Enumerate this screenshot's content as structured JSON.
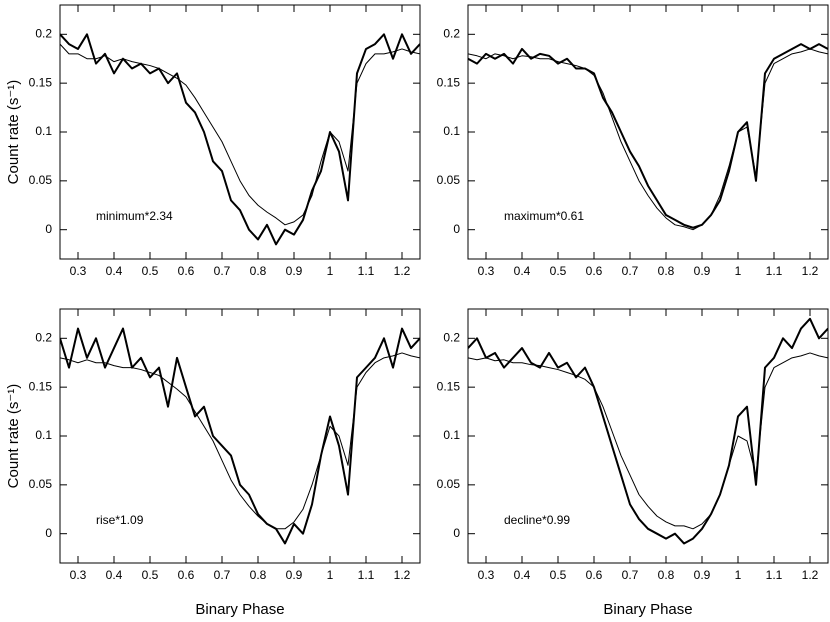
{
  "chart_data": [
    {
      "type": "line",
      "annotation": "minimum*2.34",
      "ylabel": "Count rate (s⁻¹)",
      "xlim": [
        0.25,
        1.25
      ],
      "ylim": [
        -0.03,
        0.23
      ],
      "xticks": [
        0.3,
        0.4,
        0.5,
        0.6,
        0.7,
        0.8,
        0.9,
        1,
        1.1,
        1.2
      ],
      "yticks": [
        0,
        0.05,
        0.1,
        0.15,
        0.2
      ],
      "x": [
        0.25,
        0.275,
        0.3,
        0.325,
        0.35,
        0.375,
        0.4,
        0.425,
        0.45,
        0.475,
        0.5,
        0.525,
        0.55,
        0.575,
        0.6,
        0.625,
        0.65,
        0.675,
        0.7,
        0.725,
        0.75,
        0.775,
        0.8,
        0.825,
        0.85,
        0.875,
        0.9,
        0.925,
        0.95,
        0.975,
        1,
        1.025,
        1.05,
        1.075,
        1.1,
        1.125,
        1.15,
        1.175,
        1.2,
        1.225,
        1.25
      ],
      "series": [
        {
          "color": "#000000",
          "width": 2,
          "values": [
            0.2,
            0.19,
            0.185,
            0.2,
            0.17,
            0.18,
            0.16,
            0.175,
            0.165,
            0.17,
            0.16,
            0.165,
            0.15,
            0.16,
            0.13,
            0.12,
            0.1,
            0.07,
            0.06,
            0.03,
            0.02,
            0.0,
            -0.01,
            0.005,
            -0.015,
            0.0,
            -0.005,
            0.01,
            0.04,
            0.06,
            0.1,
            0.08,
            0.03,
            0.16,
            0.185,
            0.19,
            0.2,
            0.175,
            0.2,
            0.18,
            0.19
          ]
        },
        {
          "color": "#000000",
          "width": 1,
          "values": [
            0.19,
            0.18,
            0.18,
            0.175,
            0.175,
            0.178,
            0.172,
            0.175,
            0.172,
            0.17,
            0.168,
            0.165,
            0.16,
            0.155,
            0.148,
            0.135,
            0.12,
            0.105,
            0.09,
            0.07,
            0.05,
            0.035,
            0.025,
            0.018,
            0.012,
            0.005,
            0.008,
            0.015,
            0.035,
            0.07,
            0.1,
            0.09,
            0.06,
            0.15,
            0.17,
            0.18,
            0.18,
            0.182,
            0.185,
            0.182,
            0.18
          ]
        }
      ]
    },
    {
      "type": "line",
      "annotation": "maximum*0.61",
      "xlim": [
        0.25,
        1.25
      ],
      "ylim": [
        -0.03,
        0.23
      ],
      "xticks": [
        0.3,
        0.4,
        0.5,
        0.6,
        0.7,
        0.8,
        0.9,
        1,
        1.1,
        1.2
      ],
      "yticks": [
        0,
        0.05,
        0.1,
        0.15,
        0.2
      ],
      "x": [
        0.25,
        0.275,
        0.3,
        0.325,
        0.35,
        0.375,
        0.4,
        0.425,
        0.45,
        0.475,
        0.5,
        0.525,
        0.55,
        0.575,
        0.6,
        0.625,
        0.65,
        0.675,
        0.7,
        0.725,
        0.75,
        0.775,
        0.8,
        0.825,
        0.85,
        0.875,
        0.9,
        0.925,
        0.95,
        0.975,
        1,
        1.025,
        1.05,
        1.075,
        1.1,
        1.125,
        1.15,
        1.175,
        1.2,
        1.225,
        1.25
      ],
      "series": [
        {
          "color": "#000000",
          "width": 2,
          "values": [
            0.175,
            0.17,
            0.18,
            0.175,
            0.18,
            0.17,
            0.185,
            0.175,
            0.18,
            0.178,
            0.17,
            0.175,
            0.165,
            0.165,
            0.16,
            0.135,
            0.12,
            0.1,
            0.08,
            0.065,
            0.045,
            0.03,
            0.015,
            0.01,
            0.005,
            0.002,
            0.005,
            0.015,
            0.03,
            0.06,
            0.1,
            0.11,
            0.05,
            0.16,
            0.175,
            0.18,
            0.185,
            0.19,
            0.185,
            0.19,
            0.185
          ]
        },
        {
          "color": "#000000",
          "width": 1,
          "values": [
            0.18,
            0.178,
            0.175,
            0.18,
            0.178,
            0.175,
            0.178,
            0.177,
            0.175,
            0.175,
            0.172,
            0.17,
            0.168,
            0.165,
            0.158,
            0.14,
            0.115,
            0.09,
            0.07,
            0.05,
            0.035,
            0.022,
            0.012,
            0.005,
            0.003,
            0.0,
            0.005,
            0.015,
            0.035,
            0.065,
            0.1,
            0.105,
            0.055,
            0.15,
            0.17,
            0.175,
            0.18,
            0.182,
            0.185,
            0.182,
            0.18
          ]
        }
      ]
    },
    {
      "type": "line",
      "annotation": "rise*1.09",
      "ylabel": "Count rate (s⁻¹)",
      "xlabel": "Binary Phase",
      "xlim": [
        0.25,
        1.25
      ],
      "ylim": [
        -0.03,
        0.23
      ],
      "xticks": [
        0.3,
        0.4,
        0.5,
        0.6,
        0.7,
        0.8,
        0.9,
        1,
        1.1,
        1.2
      ],
      "yticks": [
        0,
        0.05,
        0.1,
        0.15,
        0.2
      ],
      "x": [
        0.25,
        0.275,
        0.3,
        0.325,
        0.35,
        0.375,
        0.4,
        0.425,
        0.45,
        0.475,
        0.5,
        0.525,
        0.55,
        0.575,
        0.6,
        0.625,
        0.65,
        0.675,
        0.7,
        0.725,
        0.75,
        0.775,
        0.8,
        0.825,
        0.85,
        0.875,
        0.9,
        0.925,
        0.95,
        0.975,
        1,
        1.025,
        1.05,
        1.075,
        1.1,
        1.125,
        1.15,
        1.175,
        1.2,
        1.225,
        1.25
      ],
      "series": [
        {
          "color": "#000000",
          "width": 2,
          "values": [
            0.2,
            0.17,
            0.21,
            0.18,
            0.2,
            0.17,
            0.19,
            0.21,
            0.17,
            0.18,
            0.16,
            0.17,
            0.13,
            0.18,
            0.15,
            0.12,
            0.13,
            0.1,
            0.09,
            0.08,
            0.05,
            0.04,
            0.02,
            0.01,
            0.005,
            -0.01,
            0.01,
            0.0,
            0.03,
            0.08,
            0.12,
            0.09,
            0.04,
            0.16,
            0.17,
            0.18,
            0.2,
            0.17,
            0.21,
            0.19,
            0.2
          ]
        },
        {
          "color": "#000000",
          "width": 1,
          "values": [
            0.18,
            0.178,
            0.175,
            0.178,
            0.175,
            0.175,
            0.172,
            0.17,
            0.17,
            0.168,
            0.165,
            0.162,
            0.155,
            0.148,
            0.14,
            0.125,
            0.11,
            0.095,
            0.075,
            0.055,
            0.04,
            0.028,
            0.018,
            0.01,
            0.005,
            0.005,
            0.012,
            0.025,
            0.05,
            0.08,
            0.11,
            0.1,
            0.07,
            0.15,
            0.165,
            0.175,
            0.18,
            0.182,
            0.185,
            0.182,
            0.18
          ]
        }
      ]
    },
    {
      "type": "line",
      "annotation": "decline*0.99",
      "xlabel": "Binary Phase",
      "xlim": [
        0.25,
        1.25
      ],
      "ylim": [
        -0.03,
        0.23
      ],
      "xticks": [
        0.3,
        0.4,
        0.5,
        0.6,
        0.7,
        0.8,
        0.9,
        1,
        1.1,
        1.2
      ],
      "yticks": [
        0,
        0.05,
        0.1,
        0.15,
        0.2
      ],
      "x": [
        0.25,
        0.275,
        0.3,
        0.325,
        0.35,
        0.375,
        0.4,
        0.425,
        0.45,
        0.475,
        0.5,
        0.525,
        0.55,
        0.575,
        0.6,
        0.625,
        0.65,
        0.675,
        0.7,
        0.725,
        0.75,
        0.775,
        0.8,
        0.825,
        0.85,
        0.875,
        0.9,
        0.925,
        0.95,
        0.975,
        1,
        1.025,
        1.05,
        1.075,
        1.1,
        1.125,
        1.15,
        1.175,
        1.2,
        1.225,
        1.25
      ],
      "series": [
        {
          "color": "#000000",
          "width": 2,
          "values": [
            0.19,
            0.2,
            0.18,
            0.185,
            0.17,
            0.18,
            0.19,
            0.175,
            0.17,
            0.185,
            0.17,
            0.175,
            0.16,
            0.17,
            0.15,
            0.12,
            0.09,
            0.06,
            0.03,
            0.015,
            0.005,
            0.0,
            -0.005,
            0.0,
            -0.01,
            -0.005,
            0.005,
            0.02,
            0.04,
            0.07,
            0.12,
            0.13,
            0.05,
            0.17,
            0.18,
            0.2,
            0.19,
            0.21,
            0.22,
            0.2,
            0.21
          ]
        },
        {
          "color": "#000000",
          "width": 1,
          "values": [
            0.18,
            0.178,
            0.18,
            0.177,
            0.178,
            0.175,
            0.175,
            0.173,
            0.172,
            0.17,
            0.168,
            0.165,
            0.162,
            0.158,
            0.15,
            0.13,
            0.105,
            0.08,
            0.06,
            0.04,
            0.028,
            0.018,
            0.012,
            0.008,
            0.008,
            0.005,
            0.01,
            0.02,
            0.04,
            0.07,
            0.1,
            0.095,
            0.06,
            0.15,
            0.17,
            0.175,
            0.18,
            0.182,
            0.185,
            0.182,
            0.18
          ]
        }
      ]
    }
  ]
}
